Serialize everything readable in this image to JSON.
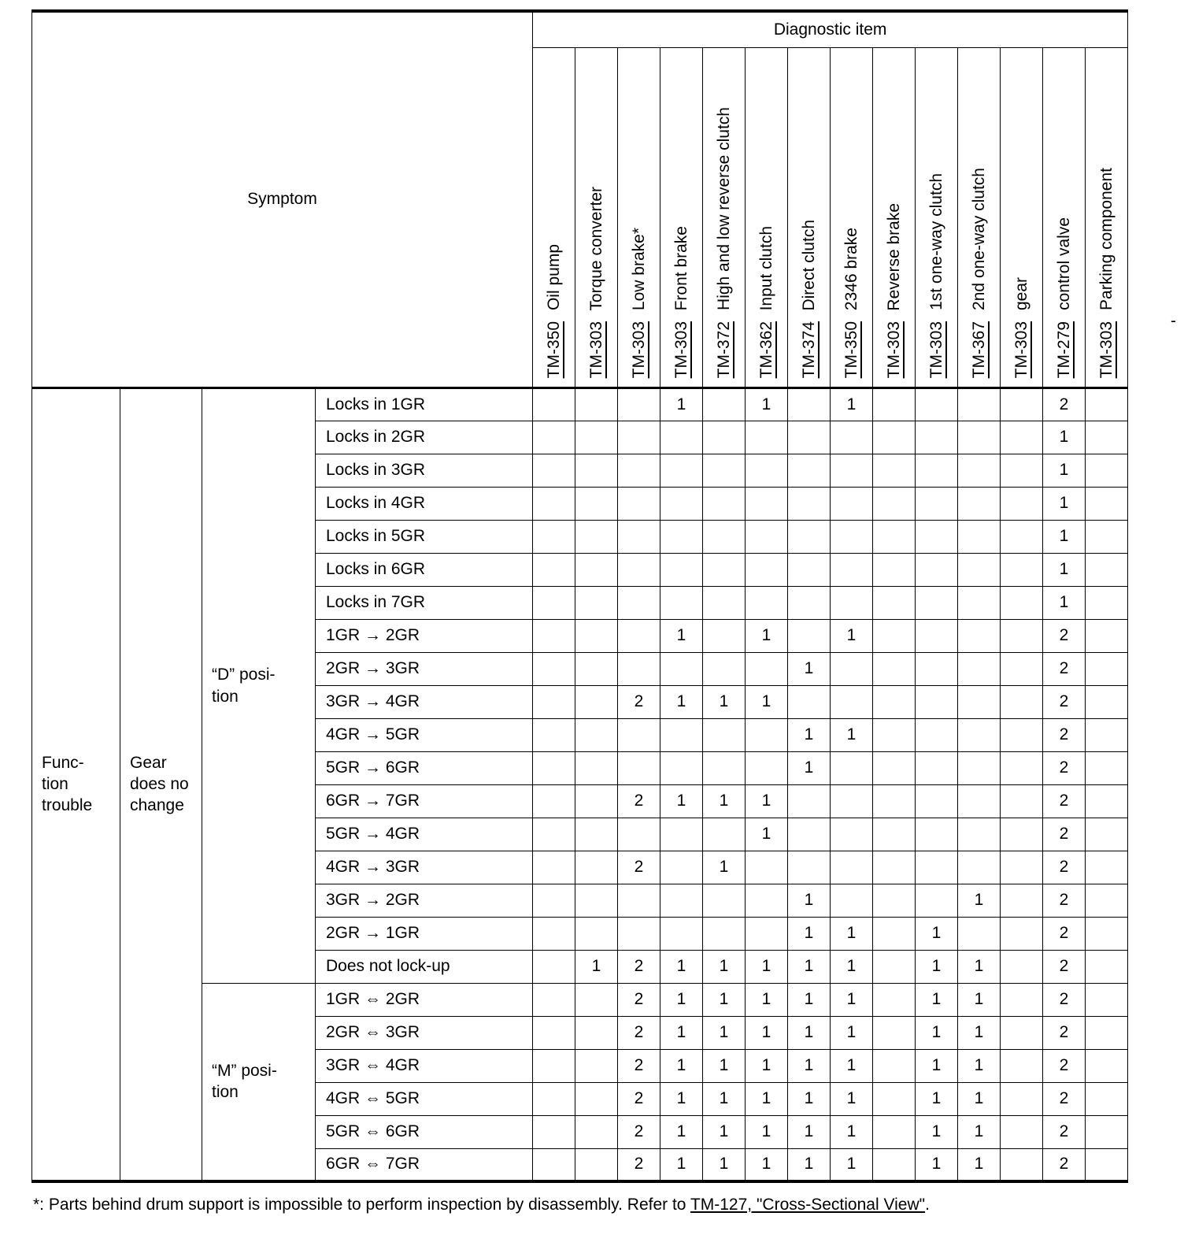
{
  "page": {
    "margin_mark": "-"
  },
  "colors": {
    "text": "#000000",
    "background": "#ffffff",
    "border": "#000000"
  },
  "header": {
    "symptom": "Symptom",
    "diagnostic_item": "Diagnostic item"
  },
  "diagnostic_columns": [
    {
      "name": "Oil pump",
      "ref": "TM-350"
    },
    {
      "name": "Torque converter",
      "ref": "TM-303"
    },
    {
      "name": "Low brake*",
      "ref": "TM-303"
    },
    {
      "name": "Front brake",
      "ref": "TM-303"
    },
    {
      "name": "High and low reverse clutch",
      "ref": "TM-372"
    },
    {
      "name": "Input clutch",
      "ref": "TM-362"
    },
    {
      "name": "Direct clutch",
      "ref": "TM-374"
    },
    {
      "name": "2346 brake",
      "ref": "TM-350"
    },
    {
      "name": "Reverse brake",
      "ref": "TM-303"
    },
    {
      "name": "1st one-way clutch",
      "ref": "TM-303"
    },
    {
      "name": "2nd one-way clutch",
      "ref": "TM-367"
    },
    {
      "name": "gear",
      "ref": "TM-303"
    },
    {
      "name": "control valve",
      "ref": "TM-279"
    },
    {
      "name": "Parking component",
      "ref": "TM-303"
    }
  ],
  "row_groups": {
    "category": "Func-\ntion\ntrouble",
    "subcategory": "Gear\ndoes no\nchange",
    "d_position": "“D” posi-\ntion",
    "m_position": "“M” posi-\ntion",
    "d_rows": 18,
    "m_rows": 6
  },
  "rows": [
    {
      "group": "d",
      "symptom": "Locks in 1GR",
      "values": [
        "",
        "",
        "",
        "1",
        "",
        "1",
        "",
        "1",
        "",
        "",
        "",
        "",
        "2",
        ""
      ]
    },
    {
      "group": "d",
      "symptom": "Locks in 2GR",
      "values": [
        "",
        "",
        "",
        "",
        "",
        "",
        "",
        "",
        "",
        "",
        "",
        "",
        "1",
        ""
      ]
    },
    {
      "group": "d",
      "symptom": "Locks in 3GR",
      "values": [
        "",
        "",
        "",
        "",
        "",
        "",
        "",
        "",
        "",
        "",
        "",
        "",
        "1",
        ""
      ]
    },
    {
      "group": "d",
      "symptom": "Locks in 4GR",
      "values": [
        "",
        "",
        "",
        "",
        "",
        "",
        "",
        "",
        "",
        "",
        "",
        "",
        "1",
        ""
      ]
    },
    {
      "group": "d",
      "symptom": "Locks in 5GR",
      "values": [
        "",
        "",
        "",
        "",
        "",
        "",
        "",
        "",
        "",
        "",
        "",
        "",
        "1",
        ""
      ]
    },
    {
      "group": "d",
      "symptom": "Locks in 6GR",
      "values": [
        "",
        "",
        "",
        "",
        "",
        "",
        "",
        "",
        "",
        "",
        "",
        "",
        "1",
        ""
      ]
    },
    {
      "group": "d",
      "symptom": "Locks in 7GR",
      "values": [
        "",
        "",
        "",
        "",
        "",
        "",
        "",
        "",
        "",
        "",
        "",
        "",
        "1",
        ""
      ]
    },
    {
      "group": "d",
      "symptom": "1GR → 2GR",
      "values": [
        "",
        "",
        "",
        "1",
        "",
        "1",
        "",
        "1",
        "",
        "",
        "",
        "",
        "2",
        ""
      ]
    },
    {
      "group": "d",
      "symptom": "2GR → 3GR",
      "values": [
        "",
        "",
        "",
        "",
        "",
        "",
        "1",
        "",
        "",
        "",
        "",
        "",
        "2",
        ""
      ]
    },
    {
      "group": "d",
      "symptom": "3GR → 4GR",
      "values": [
        "",
        "",
        "2",
        "1",
        "1",
        "1",
        "",
        "",
        "",
        "",
        "",
        "",
        "2",
        ""
      ]
    },
    {
      "group": "d",
      "symptom": "4GR → 5GR",
      "values": [
        "",
        "",
        "",
        "",
        "",
        "",
        "1",
        "1",
        "",
        "",
        "",
        "",
        "2",
        ""
      ]
    },
    {
      "group": "d",
      "symptom": "5GR → 6GR",
      "values": [
        "",
        "",
        "",
        "",
        "",
        "",
        "1",
        "",
        "",
        "",
        "",
        "",
        "2",
        ""
      ]
    },
    {
      "group": "d",
      "symptom": "6GR → 7GR",
      "values": [
        "",
        "",
        "2",
        "1",
        "1",
        "1",
        "",
        "",
        "",
        "",
        "",
        "",
        "2",
        ""
      ]
    },
    {
      "group": "d",
      "symptom": "5GR → 4GR",
      "values": [
        "",
        "",
        "",
        "",
        "",
        "1",
        "",
        "",
        "",
        "",
        "",
        "",
        "2",
        ""
      ]
    },
    {
      "group": "d",
      "symptom": "4GR → 3GR",
      "values": [
        "",
        "",
        "2",
        "",
        "1",
        "",
        "",
        "",
        "",
        "",
        "",
        "",
        "2",
        ""
      ]
    },
    {
      "group": "d",
      "symptom": "3GR → 2GR",
      "values": [
        "",
        "",
        "",
        "",
        "",
        "",
        "1",
        "",
        "",
        "",
        "1",
        "",
        "2",
        ""
      ]
    },
    {
      "group": "d",
      "symptom": "2GR → 1GR",
      "values": [
        "",
        "",
        "",
        "",
        "",
        "",
        "1",
        "1",
        "",
        "1",
        "",
        "",
        "2",
        ""
      ]
    },
    {
      "group": "d",
      "symptom": "Does not lock-up",
      "values": [
        "",
        "1",
        "2",
        "1",
        "1",
        "1",
        "1",
        "1",
        "",
        "1",
        "1",
        "",
        "2",
        ""
      ]
    },
    {
      "group": "m",
      "symptom": "1GR ⇔ 2GR",
      "values": [
        "",
        "",
        "2",
        "1",
        "1",
        "1",
        "1",
        "1",
        "",
        "1",
        "1",
        "",
        "2",
        ""
      ]
    },
    {
      "group": "m",
      "symptom": "2GR ⇔ 3GR",
      "values": [
        "",
        "",
        "2",
        "1",
        "1",
        "1",
        "1",
        "1",
        "",
        "1",
        "1",
        "",
        "2",
        ""
      ]
    },
    {
      "group": "m",
      "symptom": "3GR ⇔ 4GR",
      "values": [
        "",
        "",
        "2",
        "1",
        "1",
        "1",
        "1",
        "1",
        "",
        "1",
        "1",
        "",
        "2",
        ""
      ]
    },
    {
      "group": "m",
      "symptom": "4GR ⇔ 5GR",
      "values": [
        "",
        "",
        "2",
        "1",
        "1",
        "1",
        "1",
        "1",
        "",
        "1",
        "1",
        "",
        "2",
        ""
      ]
    },
    {
      "group": "m",
      "symptom": "5GR ⇔ 6GR",
      "values": [
        "",
        "",
        "2",
        "1",
        "1",
        "1",
        "1",
        "1",
        "",
        "1",
        "1",
        "",
        "2",
        ""
      ]
    },
    {
      "group": "m",
      "symptom": "6GR ⇔ 7GR",
      "values": [
        "",
        "",
        "2",
        "1",
        "1",
        "1",
        "1",
        "1",
        "",
        "1",
        "1",
        "",
        "2",
        ""
      ]
    }
  ],
  "footnote": {
    "prefix": "*: Parts behind drum support is impossible to perform inspection by disassembly. Refer to ",
    "link": "TM-127, \"Cross-Sectional View\"",
    "suffix": "."
  }
}
